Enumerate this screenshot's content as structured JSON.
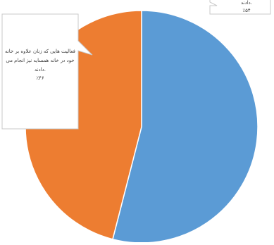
{
  "chart_data": {
    "type": "pie",
    "title": "",
    "categories": [
      "فعالیت هایی که زنان علاوه بر خانه خود در خانه همسایه نیز انجام می دادند.",
      "دادند."
    ],
    "values": [
      46,
      54
    ],
    "colors": [
      "#ED7D31",
      "#5B9BD5"
    ],
    "legend": "none",
    "labels": [
      {
        "lines": [
          "فعالیت هایی که زنان علاوه بر خانه",
          "خود در خانه همسایه نیز انجام می",
          "دادند."
        ],
        "value_text": "٪۴۶"
      },
      {
        "lines": [
          "دادند."
        ],
        "value_text": "٪۵۴"
      }
    ]
  }
}
